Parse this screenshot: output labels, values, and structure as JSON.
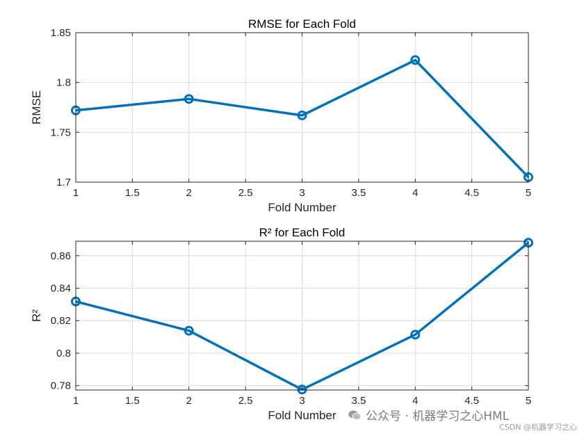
{
  "chart_data": [
    {
      "type": "line",
      "title": "RMSE for Each Fold",
      "xlabel": "Fold Number",
      "ylabel": "RMSE",
      "x": [
        1,
        2,
        3,
        4,
        5
      ],
      "values": [
        1.772,
        1.7835,
        1.767,
        1.8225,
        1.705
      ],
      "xlim": [
        1,
        5
      ],
      "ylim": [
        1.7,
        1.85
      ],
      "xticks": [
        1,
        1.5,
        2,
        2.5,
        3,
        3.5,
        4,
        4.5,
        5
      ],
      "xtick_labels": [
        "1",
        "1.5",
        "2",
        "2.5",
        "3",
        "3.5",
        "4",
        "4.5",
        "5"
      ],
      "yticks": [
        1.7,
        1.75,
        1.8,
        1.85
      ],
      "ytick_labels": [
        "1.7",
        "1.75",
        "1.8",
        "1.85"
      ],
      "grid": true,
      "marker": "circle",
      "color": "#0072BD"
    },
    {
      "type": "line",
      "title": "R² for Each Fold",
      "xlabel": "Fold Number",
      "ylabel": "R²",
      "x": [
        1,
        2,
        3,
        4,
        5
      ],
      "values": [
        0.8318,
        0.8138,
        0.7776,
        0.8114,
        0.868
      ],
      "xlim": [
        1,
        5
      ],
      "ylim": [
        0.7773,
        0.8689
      ],
      "xticks": [
        1,
        1.5,
        2,
        2.5,
        3,
        3.5,
        4,
        4.5,
        5
      ],
      "xtick_labels": [
        "1",
        "1.5",
        "2",
        "2.5",
        "3",
        "3.5",
        "4",
        "4.5",
        "5"
      ],
      "yticks": [
        0.78,
        0.8,
        0.82,
        0.84,
        0.86
      ],
      "ytick_labels": [
        "0.78",
        "0.8",
        "0.82",
        "0.84",
        "0.86"
      ],
      "grid": true,
      "marker": "circle",
      "color": "#0072BD"
    }
  ],
  "watermark": {
    "main": "公众号 · 机器学习之心HML",
    "sub": "CSDN @机器学习之心",
    "icon": "wechat-icon"
  }
}
